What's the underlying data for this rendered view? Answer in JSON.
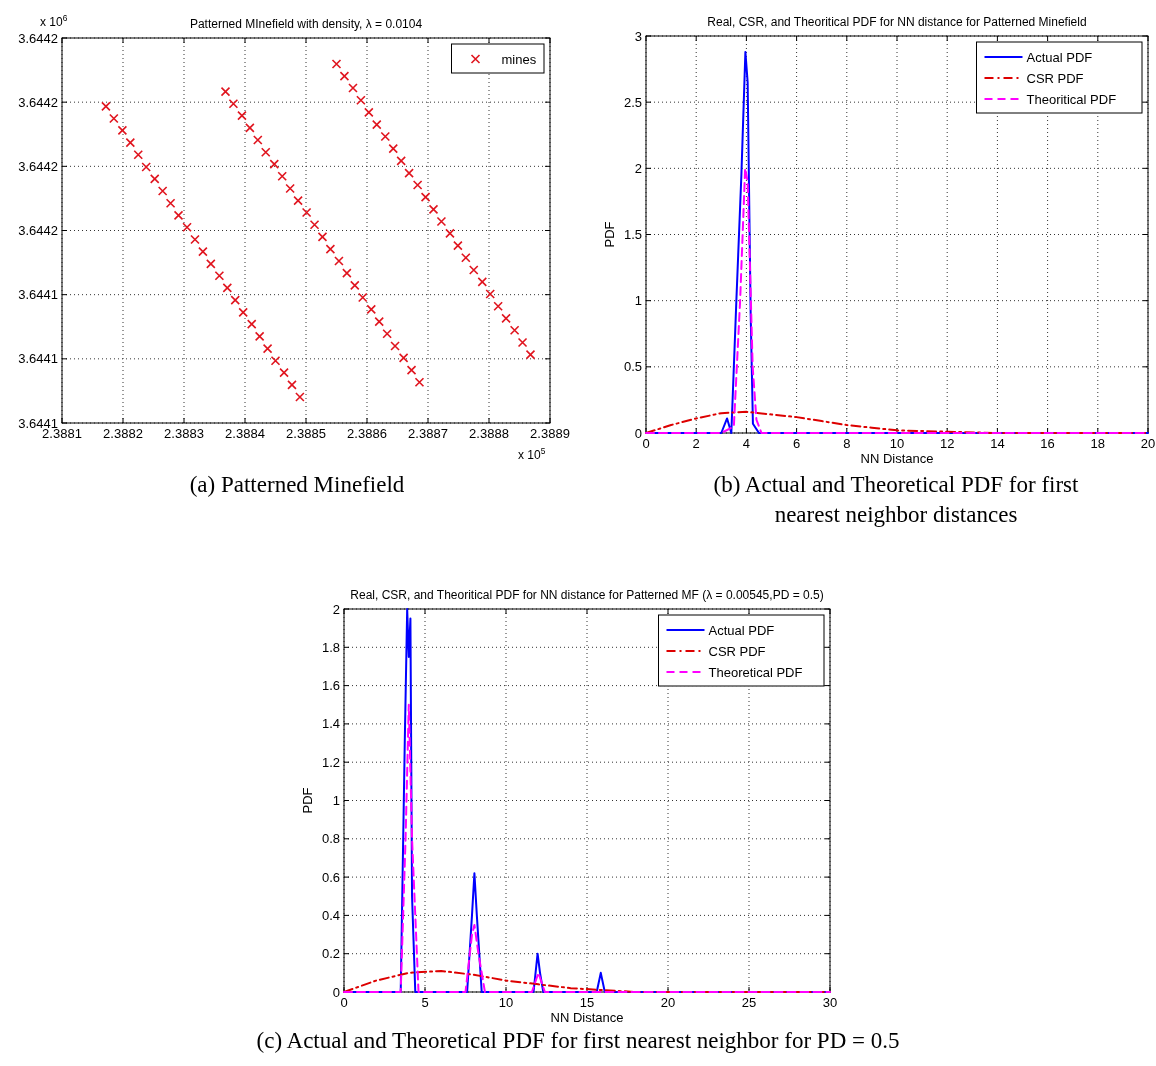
{
  "chart_data": [
    {
      "type": "scatter",
      "title": "Patterned MInefield with density, λ = 0.0104",
      "xlim": [
        2.3881,
        2.3889
      ],
      "ylim": [
        3.6441,
        3.64422
      ],
      "xticks": [
        2.3881,
        2.3882,
        2.3883,
        2.3884,
        2.3885,
        2.3886,
        2.3887,
        2.3888,
        2.3889
      ],
      "yticks": [
        3.6441,
        {
          "value": 3.64412,
          "label": "3.6441"
        },
        {
          "value": 3.64414,
          "label": "3.6441"
        },
        {
          "value": 3.64416,
          "label": "3.6442"
        },
        {
          "value": 3.64418,
          "label": "3.6442"
        },
        {
          "value": 3.6442,
          "label": "3.6442"
        },
        {
          "value": 3.64422,
          "label": "3.6442"
        }
      ],
      "grid": true,
      "legend": "top right",
      "marker": "cross",
      "annotations": [
        "x 10$^{6}$",
        "x 10$^{5}$",
        "(a) Patterned Minefield"
      ],
      "series": [
        {
          "name": "mines",
          "color": "#e0141e",
          "x": [
            2.388172,
            2.388185,
            2.388199,
            2.388212,
            2.388225,
            2.388238,
            2.388252,
            2.388265,
            2.388278,
            2.388291,
            2.388305,
            2.388318,
            2.388331,
            2.388344,
            2.388358,
            2.388371,
            2.388384,
            2.388397,
            2.388411,
            2.388424,
            2.388437,
            2.38845,
            2.388464,
            2.388477,
            2.38849,
            2.388368,
            2.388381,
            2.388395,
            2.388408,
            2.388421,
            2.388434,
            2.388448,
            2.388461,
            2.388474,
            2.388487,
            2.388501,
            2.388514,
            2.388527,
            2.38854,
            2.388554,
            2.388567,
            2.38858,
            2.388593,
            2.388607,
            2.38862,
            2.388633,
            2.388646,
            2.38866,
            2.388673,
            2.388686,
            2.38855,
            2.388563,
            2.388577,
            2.38859,
            2.388603,
            2.388616,
            2.38863,
            2.388643,
            2.388656,
            2.388669,
            2.388683,
            2.388696,
            2.388709,
            2.388722,
            2.388736,
            2.388749,
            2.388762,
            2.388775,
            2.388789,
            2.388802,
            2.388815,
            2.388828,
            2.388842,
            2.388855,
            2.388868
          ],
          "values": [
            3.6441987,
            3.6441949,
            3.6441912,
            3.6441874,
            3.6441836,
            3.6441798,
            3.6441761,
            3.6441723,
            3.6441685,
            3.6441647,
            3.644161,
            3.6441572,
            3.6441534,
            3.6441496,
            3.6441459,
            3.6441421,
            3.6441383,
            3.6441345,
            3.6441308,
            3.644127,
            3.6441232,
            3.6441194,
            3.6441157,
            3.6441119,
            3.6441081,
            3.6442033,
            3.6441995,
            3.6441958,
            3.644192,
            3.6441882,
            3.6441844,
            3.6441807,
            3.6441769,
            3.6441731,
            3.6441693,
            3.6441656,
            3.6441618,
            3.644158,
            3.6441542,
            3.6441505,
            3.6441467,
            3.6441429,
            3.6441391,
            3.6441354,
            3.6441316,
            3.6441278,
            3.644124,
            3.6441203,
            3.6441165,
            3.6441127,
            3.6442119,
            3.6442081,
            3.6442044,
            3.6442006,
            3.6441968,
            3.644193,
            3.6441893,
            3.6441855,
            3.6441817,
            3.6441779,
            3.6441742,
            3.6441704,
            3.6441666,
            3.6441628,
            3.6441591,
            3.6441553,
            3.6441515,
            3.6441477,
            3.644144,
            3.6441402,
            3.6441364,
            3.6441326,
            3.6441289,
            3.6441251,
            3.6441213
          ]
        }
      ]
    },
    {
      "type": "line",
      "title": "Real, CSR, and Theoritical PDF for NN distance for Patterned Minefield",
      "xlabel": "NN Distance",
      "ylabel": "PDF",
      "xlim": [
        0,
        20
      ],
      "ylim": [
        0,
        3
      ],
      "xticks": [
        0,
        2,
        4,
        6,
        8,
        10,
        12,
        14,
        16,
        18,
        20
      ],
      "yticks": [
        0,
        0.5,
        1,
        1.5,
        2,
        2.5,
        3
      ],
      "grid": true,
      "legend": "top right",
      "annotations": [
        "(b) Actual and Theoretical PDF for first nearest neighbor distances"
      ],
      "series": [
        {
          "name": "Actual PDF",
          "color": "#0000ff",
          "line_style": "solid",
          "x": [
            0,
            3.0,
            3.23,
            3.4,
            3.6,
            3.8,
            3.96,
            4.05,
            4.17,
            4.26,
            4.5,
            20
          ],
          "values": [
            0,
            0,
            0.11,
            0,
            1.0,
            1.95,
            2.88,
            2.65,
            0.9,
            0.07,
            0,
            0
          ]
        },
        {
          "name": "CSR PDF",
          "color": "#dd0000",
          "line_style": "dashdot",
          "x": [
            0,
            1,
            2,
            3,
            4,
            5,
            6,
            7,
            8,
            9,
            10,
            12,
            14,
            16,
            20
          ],
          "values": [
            0,
            0.06,
            0.11,
            0.15,
            0.16,
            0.14,
            0.12,
            0.09,
            0.06,
            0.04,
            0.02,
            0.01,
            0,
            0,
            0
          ]
        },
        {
          "name": "Theoritical PDF",
          "color": "#ff00ff",
          "line_style": "dashed",
          "x": [
            0,
            3.0,
            3.5,
            3.75,
            3.95,
            4.05,
            4.25,
            4.4,
            4.6,
            20
          ],
          "values": [
            0,
            0,
            0.05,
            1.0,
            2.0,
            1.9,
            0.5,
            0.1,
            0,
            0
          ]
        }
      ]
    },
    {
      "type": "line",
      "title": "Real, CSR, and Theoritical PDF for NN distance for Patterned MF (λ = 0.00545,PD = 0.5)",
      "xlabel": "NN Distance",
      "ylabel": "PDF",
      "xlim": [
        0,
        30
      ],
      "ylim": [
        0,
        2
      ],
      "xticks": [
        0,
        5,
        10,
        15,
        20,
        25,
        30
      ],
      "yticks": [
        0,
        0.2,
        0.4,
        0.6,
        0.8,
        1,
        1.2,
        1.4,
        1.6,
        1.8,
        2
      ],
      "grid": true,
      "legend": "top right",
      "annotations": [
        "(c) Actual and Theoretical PDF for first nearest neighbor for PD = 0.5"
      ],
      "series": [
        {
          "name": "Actual PDF",
          "color": "#0000ff",
          "line_style": "solid",
          "x": [
            0,
            3.5,
            3.75,
            3.9,
            4.0,
            4.1,
            4.2,
            4.4,
            7.6,
            7.9,
            8.05,
            8.2,
            8.5,
            11.7,
            11.95,
            12.1,
            12.3,
            15.6,
            15.85,
            16.1,
            30
          ],
          "values": [
            0,
            0,
            1.3,
            2.0,
            1.75,
            1.95,
            0.5,
            0,
            0,
            0.4,
            0.62,
            0.4,
            0,
            0,
            0.2,
            0.1,
            0,
            0,
            0.1,
            0,
            0
          ]
        },
        {
          "name": "CSR PDF",
          "color": "#dd0000",
          "line_style": "dashdot",
          "x": [
            0,
            2,
            4,
            6,
            8,
            10,
            12,
            14,
            16,
            18,
            20,
            30
          ],
          "values": [
            0,
            0.06,
            0.1,
            0.11,
            0.09,
            0.06,
            0.04,
            0.02,
            0.01,
            0,
            0,
            0
          ]
        },
        {
          "name": "Theoretical PDF",
          "color": "#ff00ff",
          "line_style": "dashed",
          "x": [
            0,
            3.5,
            3.8,
            4.0,
            4.2,
            4.6,
            7.5,
            7.9,
            8.05,
            8.3,
            8.7,
            11.6,
            12.0,
            12.4,
            30
          ],
          "values": [
            0,
            0,
            0.8,
            1.5,
            0.8,
            0,
            0,
            0.3,
            0.35,
            0.2,
            0,
            0,
            0.1,
            0,
            0
          ]
        }
      ]
    }
  ]
}
